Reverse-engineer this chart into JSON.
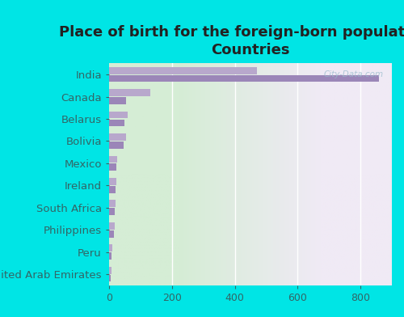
{
  "title": "Place of birth for the foreign-born population -\nCountries",
  "categories": [
    "India",
    "Canada",
    "Belarus",
    "Bolivia",
    "Mexico",
    "Ireland",
    "South Africa",
    "Philippines",
    "Peru",
    "United Arab Emirates"
  ],
  "values_top": [
    470,
    130,
    60,
    55,
    25,
    22,
    20,
    18,
    10,
    8
  ],
  "values_bottom": [
    860,
    55,
    50,
    45,
    22,
    20,
    18,
    15,
    8,
    6
  ],
  "bar_color_top": "#b8a8cc",
  "bar_color_bottom": "#9b86b8",
  "background_color": "#00e5e5",
  "plot_bg_left": "#d5edd5",
  "plot_bg_right": "#f0eaf5",
  "title_color": "#222222",
  "label_color": "#336666",
  "tick_color": "#336666",
  "xlim": [
    0,
    900
  ],
  "xticks": [
    0,
    200,
    400,
    600,
    800
  ],
  "watermark": "City-Data.com",
  "title_fontsize": 13,
  "label_fontsize": 9.5,
  "bar_height": 0.32,
  "bar_gap": 0.04
}
